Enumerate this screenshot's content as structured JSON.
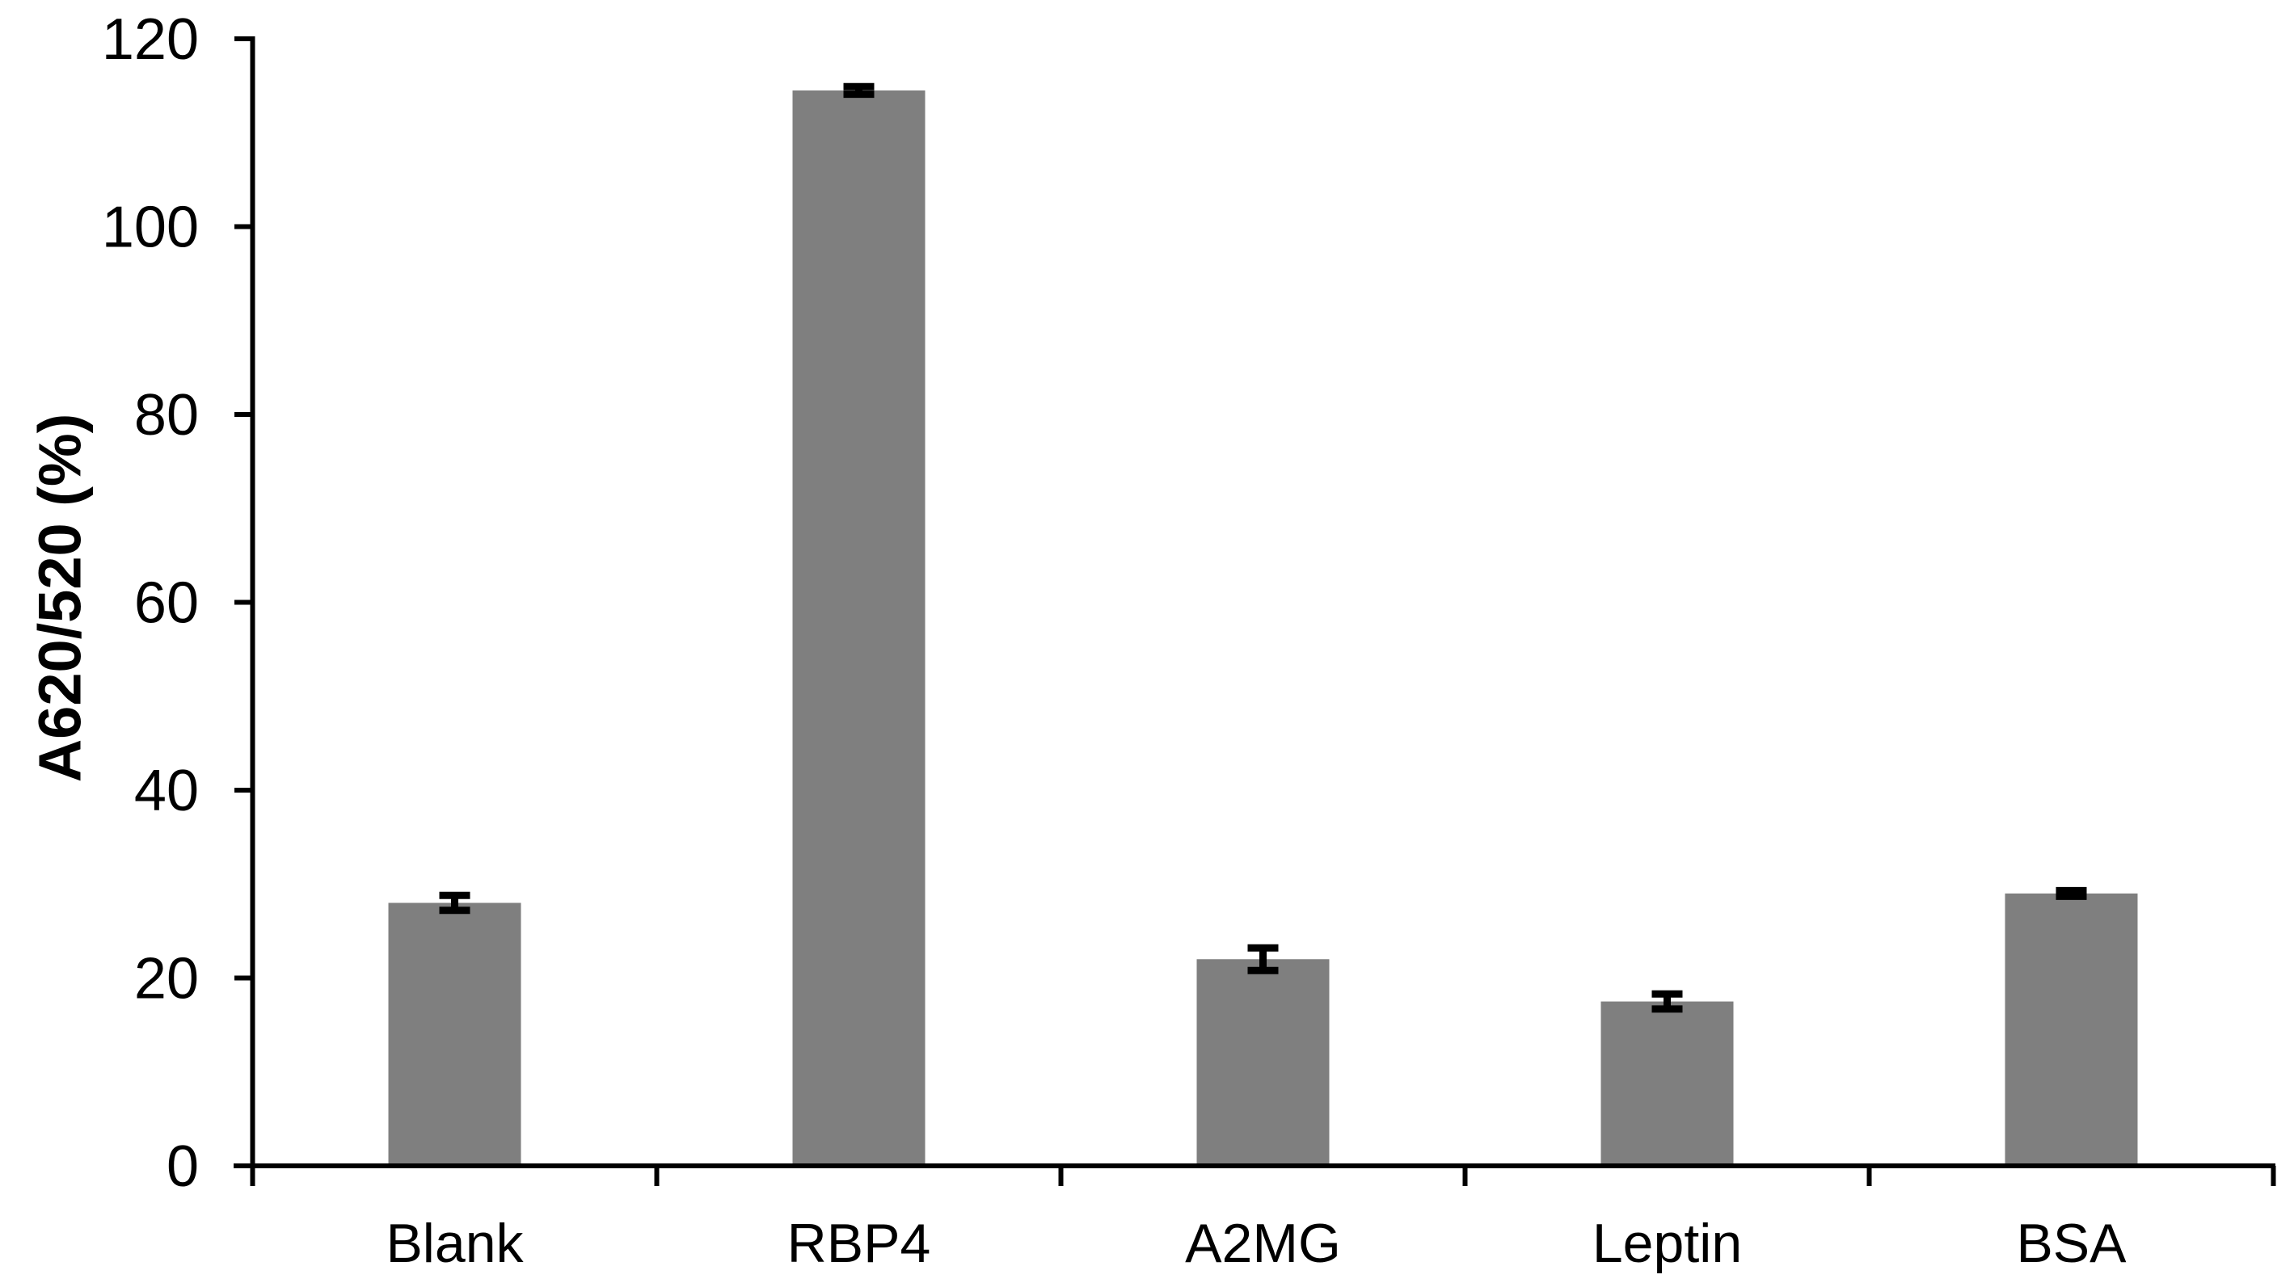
{
  "figure": {
    "background": "#ffffff"
  },
  "chart_data": {
    "type": "bar",
    "title": "",
    "categories": [
      "Blank",
      "RBP4",
      "A2MG",
      "Leptin",
      "BSA"
    ],
    "values": [
      28,
      114.5,
      22,
      17.5,
      29
    ],
    "errors": [
      0.8,
      0.4,
      1.2,
      0.8,
      0.3
    ],
    "xlabel": "",
    "ylabel": "A620/520 (%)",
    "ylim": [
      0,
      120
    ],
    "yticks": [
      0,
      20,
      40,
      60,
      80,
      100,
      120
    ],
    "ytick_labels": [
      "0",
      "20",
      "40",
      "60",
      "80",
      "100",
      "120"
    ],
    "grid": false,
    "legend": false,
    "bar_color": "#7f7f7f",
    "axis_color": "#000000",
    "error_bar_color": "#000000",
    "text_color": "#000000"
  }
}
